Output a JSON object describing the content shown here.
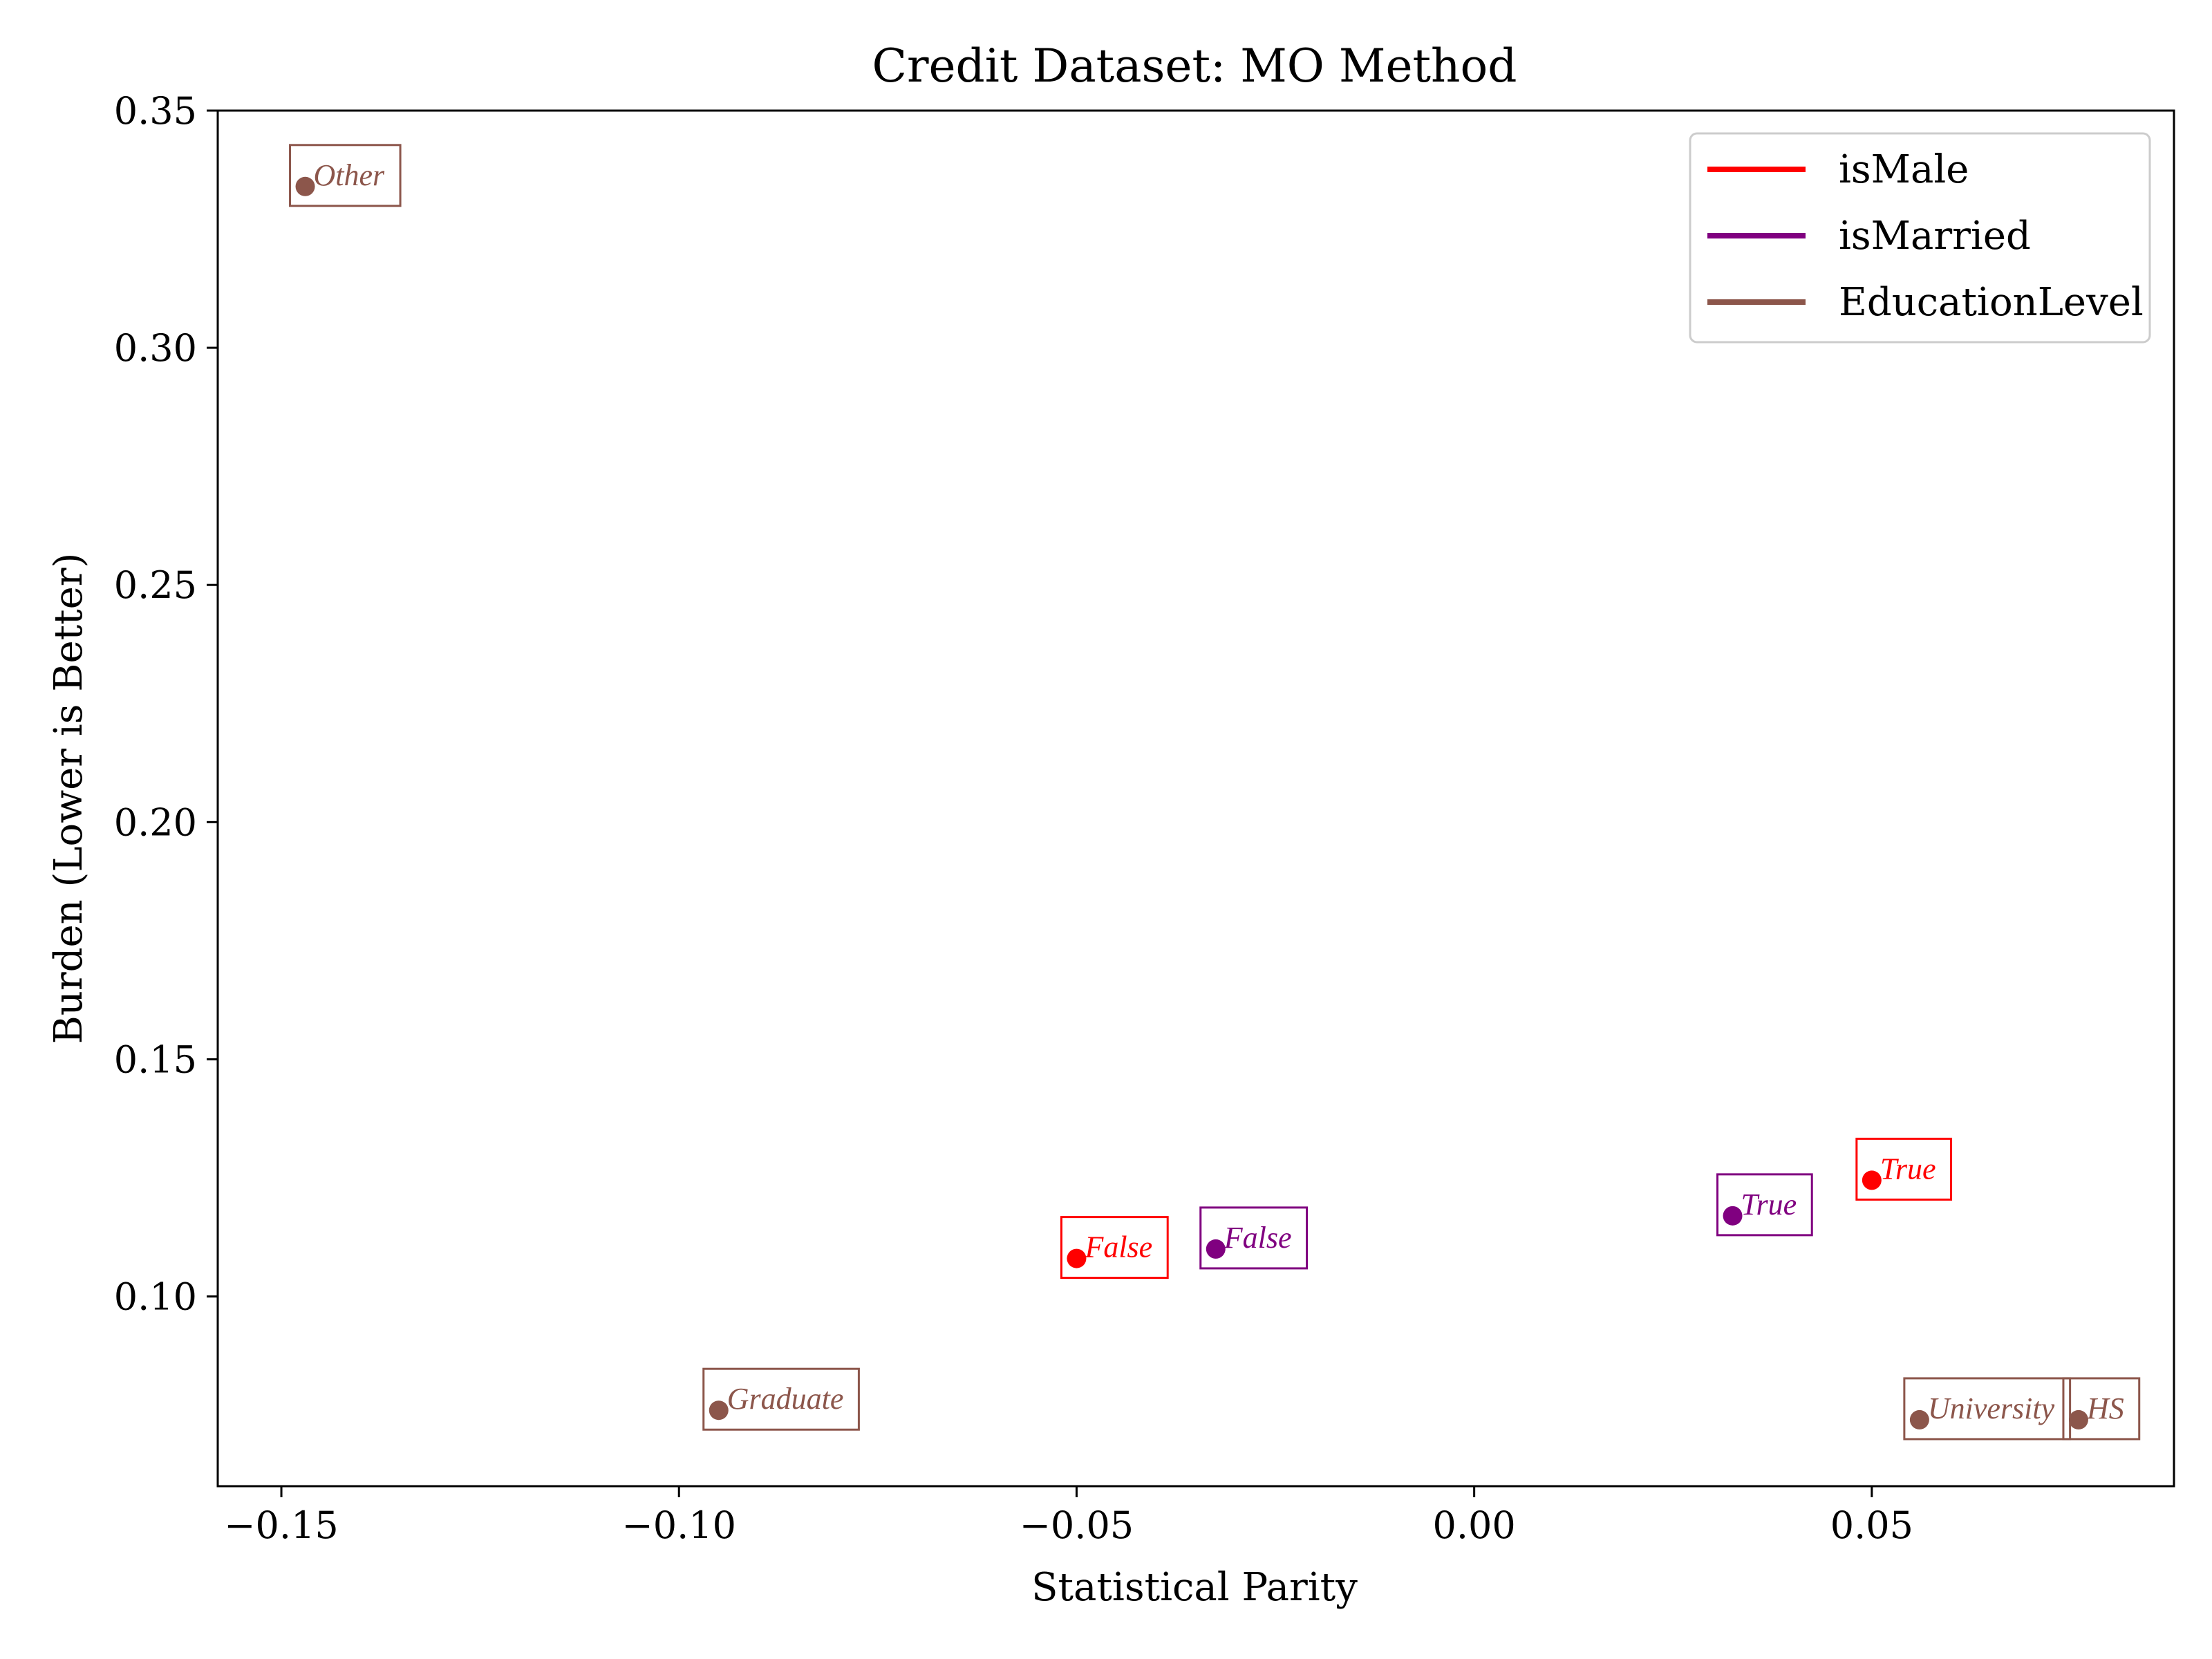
{
  "chart_data": {
    "type": "scatter",
    "title": "Credit Dataset: MO Method",
    "xlabel": "Statistical Parity",
    "ylabel": "Burden (Lower is Better)",
    "xlim": [
      -0.158,
      0.088
    ],
    "ylim": [
      0.06,
      0.35
    ],
    "xticks": [
      {
        "value": -0.15,
        "label": "−0.15"
      },
      {
        "value": -0.1,
        "label": "−0.10"
      },
      {
        "value": -0.05,
        "label": "−0.05"
      },
      {
        "value": 0.0,
        "label": "0.00"
      },
      {
        "value": 0.05,
        "label": "0.05"
      }
    ],
    "yticks": [
      {
        "value": 0.1,
        "label": "0.10"
      },
      {
        "value": 0.15,
        "label": "0.15"
      },
      {
        "value": 0.2,
        "label": "0.20"
      },
      {
        "value": 0.25,
        "label": "0.25"
      },
      {
        "value": 0.3,
        "label": "0.30"
      },
      {
        "value": 0.35,
        "label": "0.35"
      }
    ],
    "grid": false,
    "legend_position": "top-right",
    "series": [
      {
        "name": "isMale",
        "color": "#ff0000",
        "points": [
          {
            "x": -0.05,
            "y": 0.108,
            "label": "False"
          },
          {
            "x": 0.05,
            "y": 0.1245,
            "label": "True"
          }
        ]
      },
      {
        "name": "isMarried",
        "color": "#800080",
        "points": [
          {
            "x": -0.0325,
            "y": 0.11,
            "label": "False"
          },
          {
            "x": 0.0325,
            "y": 0.117,
            "label": "True"
          }
        ]
      },
      {
        "name": "EducationLevel",
        "color": "#8c564b",
        "points": [
          {
            "x": -0.147,
            "y": 0.334,
            "label": "Other"
          },
          {
            "x": -0.095,
            "y": 0.076,
            "label": "Graduate"
          },
          {
            "x": 0.056,
            "y": 0.074,
            "label": "University"
          },
          {
            "x": 0.076,
            "y": 0.074,
            "label": "HS"
          }
        ]
      }
    ]
  }
}
